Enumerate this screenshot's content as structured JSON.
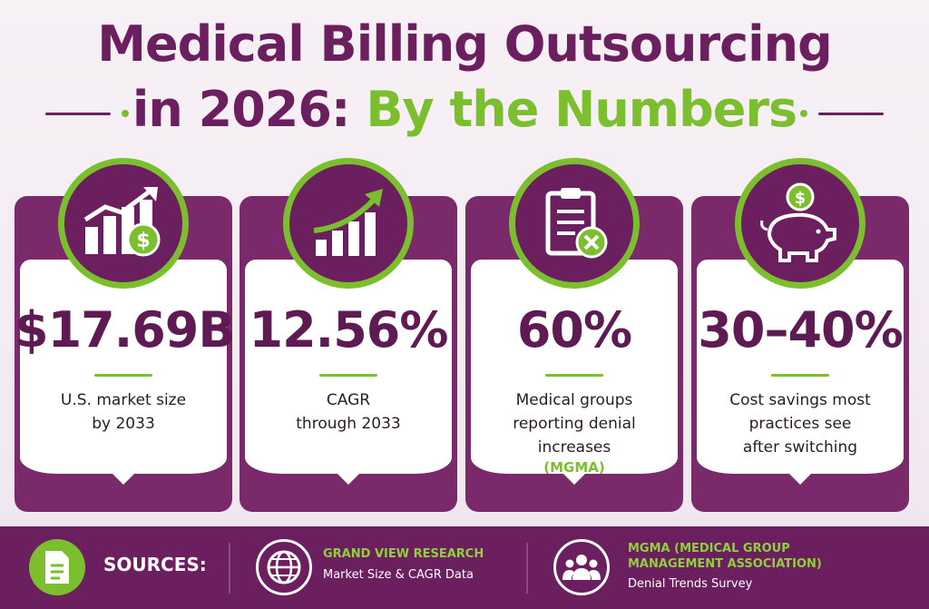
{
  "title": {
    "line1": "Medical Billing Outsourcing",
    "line2_part1": "in 2026:",
    "line2_part2": "By the Numbers"
  },
  "cards": [
    {
      "icon": "bar-chart-dollar-icon",
      "stat": "$17.69B",
      "desc_line1": "U.S. market size",
      "desc_line2": "by 2033",
      "desc_line3": "",
      "source": ""
    },
    {
      "icon": "growth-arrow-chart-icon",
      "stat": "12.56%",
      "desc_line1": "CAGR",
      "desc_line2": "through 2033",
      "desc_line3": "",
      "source": ""
    },
    {
      "icon": "clipboard-x-icon",
      "stat": "60%",
      "desc_line1": "Medical groups",
      "desc_line2": "reporting denial",
      "desc_line3": "increases",
      "source": "(MGMA)"
    },
    {
      "icon": "piggy-bank-dollar-icon",
      "stat": "30–40%",
      "desc_line1": "Cost savings most",
      "desc_line2": "practices see",
      "desc_line3": "after switching",
      "source": ""
    }
  ],
  "footer": {
    "sources_label": "SOURCES:",
    "source1_name": "GRAND VIEW RESEARCH",
    "source1_detail": "Market Size & CAGR Data",
    "source2_name_line1": "MGMA (MEDICAL GROUP",
    "source2_name_line2": "MANAGEMENT ASSOCIATION)",
    "source2_detail": "Denial Trends Survey"
  },
  "colors": {
    "purple": "#6b1f5e",
    "green": "#7cbf2e"
  }
}
